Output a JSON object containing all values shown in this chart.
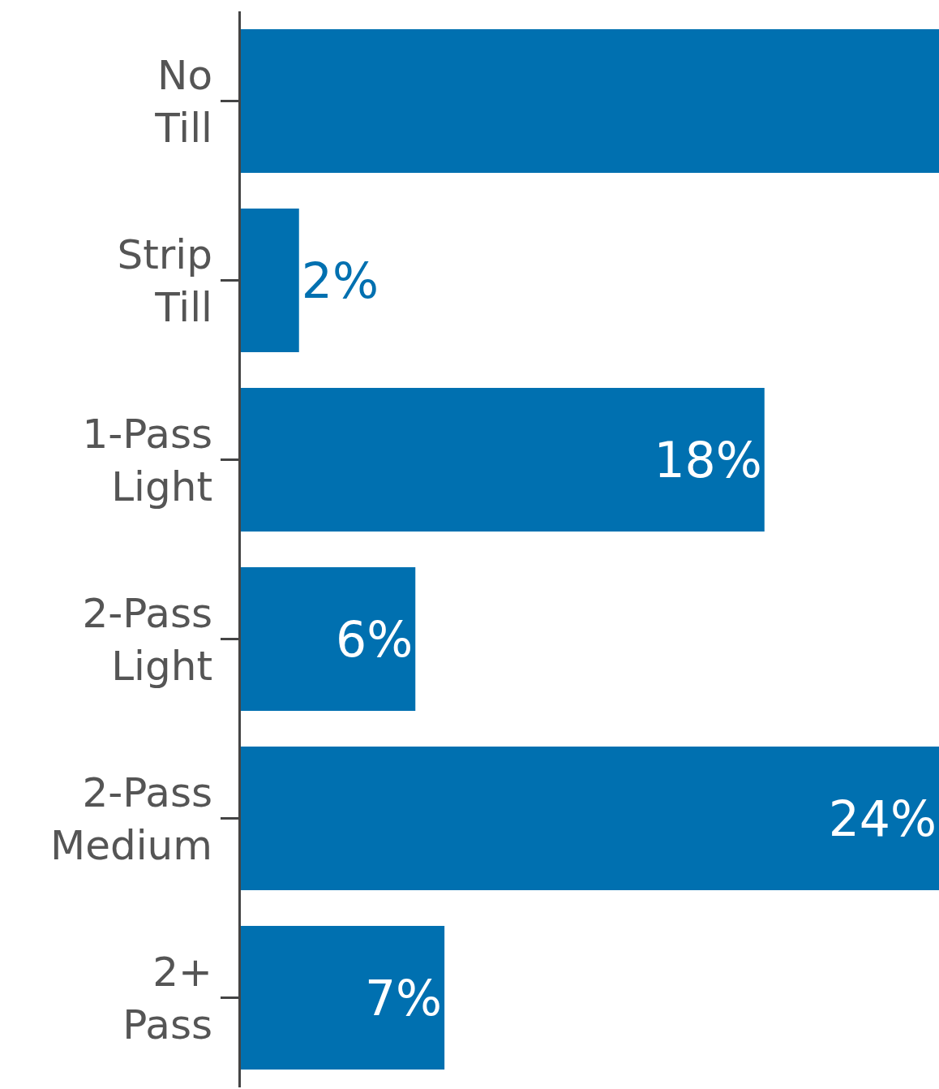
{
  "chart_data": {
    "type": "bar",
    "orientation": "horizontal",
    "categories": [
      "No Till",
      "Strip Till",
      "1-Pass Light",
      "2-Pass Light",
      "2-Pass Medium",
      "2+ Pass"
    ],
    "values": [
      24,
      2,
      18,
      6,
      24,
      7
    ],
    "value_labels": [
      null,
      "2%",
      "18%",
      "6%",
      "24%",
      "7%"
    ],
    "color": "#0070b0",
    "xlim": [
      0,
      24
    ],
    "tick_labels": "y"
  }
}
